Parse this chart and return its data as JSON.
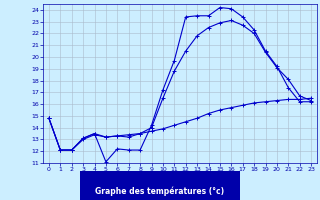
{
  "bg_color": "#cceeff",
  "axis_bg_color": "#cceeff",
  "xlabel_bg_color": "#0000aa",
  "grid_color": "#aabbcc",
  "line_color": "#0000cc",
  "xlabel_text_color": "#ffffff",
  "tick_color": "#0000aa",
  "title": "Graphe des températures (°c)",
  "xlim": [
    -0.5,
    23.5
  ],
  "ylim": [
    11,
    24.5
  ],
  "xticks": [
    0,
    1,
    2,
    3,
    4,
    5,
    6,
    7,
    8,
    9,
    10,
    11,
    12,
    13,
    14,
    15,
    16,
    17,
    18,
    19,
    20,
    21,
    22,
    23
  ],
  "yticks": [
    11,
    12,
    13,
    14,
    15,
    16,
    17,
    18,
    19,
    20,
    21,
    22,
    23,
    24
  ],
  "series": [
    {
      "x": [
        0,
        1,
        2,
        3,
        4,
        5,
        6,
        7,
        8,
        9,
        10,
        11,
        12,
        13,
        14,
        15,
        16,
        17,
        18,
        19,
        20,
        21,
        22,
        23
      ],
      "y": [
        14.8,
        12.1,
        12.1,
        13.1,
        13.5,
        11.1,
        12.2,
        12.1,
        12.1,
        14.2,
        17.2,
        19.7,
        23.4,
        23.5,
        23.5,
        24.2,
        24.1,
        23.4,
        22.3,
        20.5,
        19.2,
        17.4,
        16.2,
        16.2
      ]
    },
    {
      "x": [
        0,
        1,
        2,
        3,
        4,
        5,
        6,
        7,
        8,
        9,
        10,
        11,
        12,
        13,
        14,
        15,
        16,
        17,
        18,
        19,
        20,
        21,
        22,
        23
      ],
      "y": [
        14.8,
        12.1,
        12.1,
        13.0,
        13.4,
        13.2,
        13.3,
        13.4,
        13.5,
        13.7,
        13.9,
        14.2,
        14.5,
        14.8,
        15.2,
        15.5,
        15.7,
        15.9,
        16.1,
        16.2,
        16.3,
        16.4,
        16.4,
        16.5
      ]
    },
    {
      "x": [
        0,
        1,
        2,
        3,
        4,
        5,
        6,
        7,
        8,
        9,
        10,
        11,
        12,
        13,
        14,
        15,
        16,
        17,
        18,
        19,
        20,
        21,
        22,
        23
      ],
      "y": [
        14.8,
        12.1,
        12.1,
        13.1,
        13.5,
        13.2,
        13.3,
        13.2,
        13.5,
        14.0,
        16.5,
        18.8,
        20.5,
        21.8,
        22.5,
        22.9,
        23.1,
        22.7,
        22.0,
        20.4,
        19.1,
        18.1,
        16.7,
        16.3
      ]
    }
  ]
}
